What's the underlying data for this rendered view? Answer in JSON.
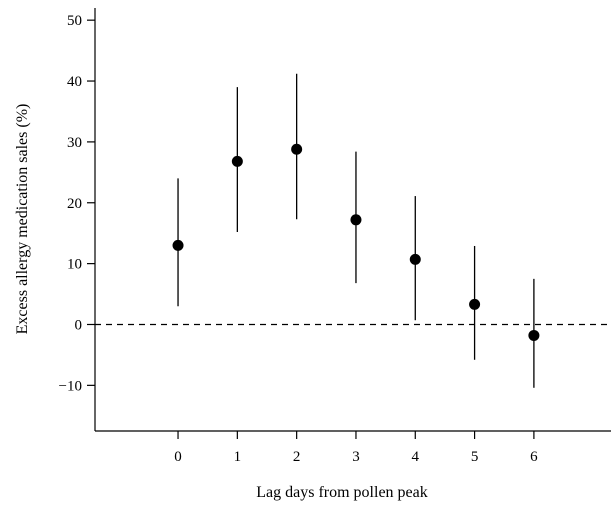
{
  "chart_data": {
    "type": "scatter",
    "title": "",
    "xlabel": "Lag days from pollen peak",
    "ylabel": "Excess allergy medication sales (%)",
    "x": [
      0,
      1,
      2,
      3,
      4,
      5,
      6
    ],
    "estimate": [
      13,
      26.8,
      28.8,
      17.2,
      10.7,
      3.3,
      -1.8
    ],
    "lower": [
      3,
      15.2,
      17.3,
      6.8,
      0.7,
      -5.8,
      -10.4
    ],
    "upper": [
      24,
      39,
      41.2,
      28.4,
      21.1,
      12.9,
      7.5
    ],
    "xlim": [
      -1.4,
      7.3
    ],
    "ylim": [
      -17.5,
      52
    ],
    "yticks": [
      -10,
      0,
      10,
      20,
      30,
      40,
      50
    ],
    "xticks": [
      0,
      1,
      2,
      3,
      4,
      5,
      6
    ],
    "ytick_labels": [
      "−10",
      "0",
      "10",
      "20",
      "30",
      "40",
      "50"
    ],
    "xtick_labels": [
      "0",
      "1",
      "2",
      "3",
      "4",
      "5",
      "6"
    ],
    "reference_line": 0,
    "grid": false,
    "legend": "none"
  }
}
